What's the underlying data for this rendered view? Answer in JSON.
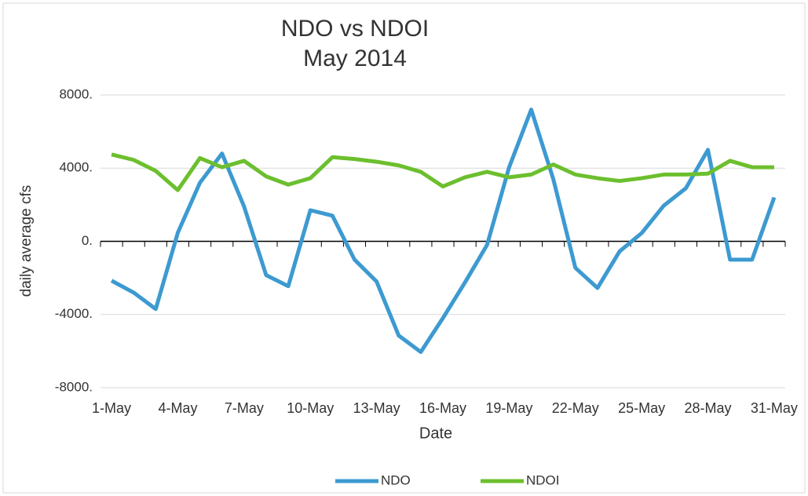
{
  "chart_data": {
    "type": "line",
    "title": [
      "NDO vs NDOI",
      "May 2014"
    ],
    "x_label": "Date",
    "y_label": "daily average cfs",
    "categories": [
      "1-May",
      null,
      null,
      "4-May",
      null,
      null,
      "7-May",
      null,
      null,
      "10-May",
      null,
      null,
      "13-May",
      null,
      null,
      "16-May",
      null,
      null,
      "19-May",
      null,
      null,
      "22-May",
      null,
      null,
      "25-May",
      null,
      null,
      "28-May",
      null,
      null,
      "31-May"
    ],
    "series": [
      {
        "name": "NDO",
        "color": "#3d9ad1",
        "values": [
          -2150,
          -2800,
          -3700,
          470,
          3200,
          4800,
          1900,
          -1850,
          -2450,
          1700,
          1400,
          -1000,
          -2200,
          -5150,
          -6050,
          -4200,
          -2250,
          -200,
          4050,
          7200,
          3400,
          -1450,
          -2550,
          -550,
          450,
          1950,
          2900,
          5000,
          -1000,
          -1000,
          2400
        ]
      },
      {
        "name": "NDOI",
        "color": "#6cbf2e",
        "values": [
          4750,
          4450,
          3850,
          2800,
          4550,
          4050,
          4400,
          3550,
          3100,
          3450,
          4600,
          4500,
          4350,
          4150,
          3800,
          3000,
          3500,
          3800,
          3500,
          3650,
          4200,
          3650,
          3450,
          3300,
          3450,
          3650,
          3650,
          3700,
          4400,
          4050,
          4050
        ]
      }
    ],
    "ylim": [
      -8000,
      8000
    ],
    "yticks": [
      {
        "value": -8000,
        "label": "-8000."
      },
      {
        "value": -4000,
        "label": "-4000."
      },
      {
        "value": 0,
        "label": "0."
      },
      {
        "value": 4000,
        "label": "4000."
      },
      {
        "value": 8000,
        "label": "8000."
      }
    ],
    "grid": true,
    "legend": "bottom"
  }
}
